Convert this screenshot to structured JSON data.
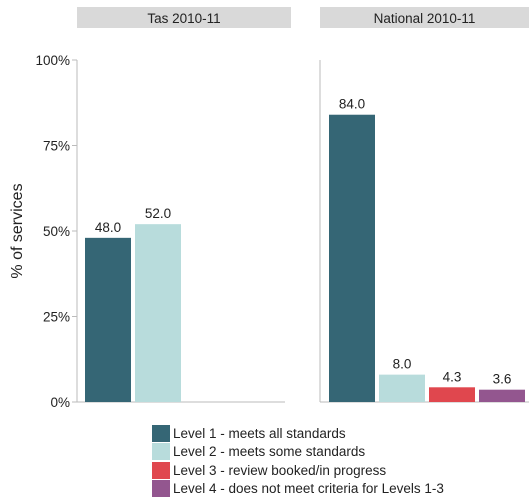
{
  "chart_data": {
    "type": "bar",
    "ylabel": "% of services",
    "ylim": [
      0,
      100
    ],
    "yticks": [
      "0%",
      "25%",
      "50%",
      "75%",
      "100%"
    ],
    "tick_values": [
      0,
      25,
      50,
      75,
      100
    ],
    "panels": [
      {
        "title": "Tas 2010-11",
        "values": [
          48.0,
          52.0,
          null,
          null
        ]
      },
      {
        "title": "National 2010-11",
        "values": [
          84.0,
          8.0,
          4.3,
          3.6
        ]
      }
    ],
    "series": [
      {
        "name": "Level 1 - meets all standards",
        "color": "#356675"
      },
      {
        "name": "Level 2 - meets some standards",
        "color": "#b8dcdc"
      },
      {
        "name": "Level 3 - review booked/in progress",
        "color": "#e0474e"
      },
      {
        "name": "Level 4 - does not meet criteria for Levels 1-3",
        "color": "#93568f"
      }
    ],
    "grid": false,
    "legend_position": "bottom"
  }
}
